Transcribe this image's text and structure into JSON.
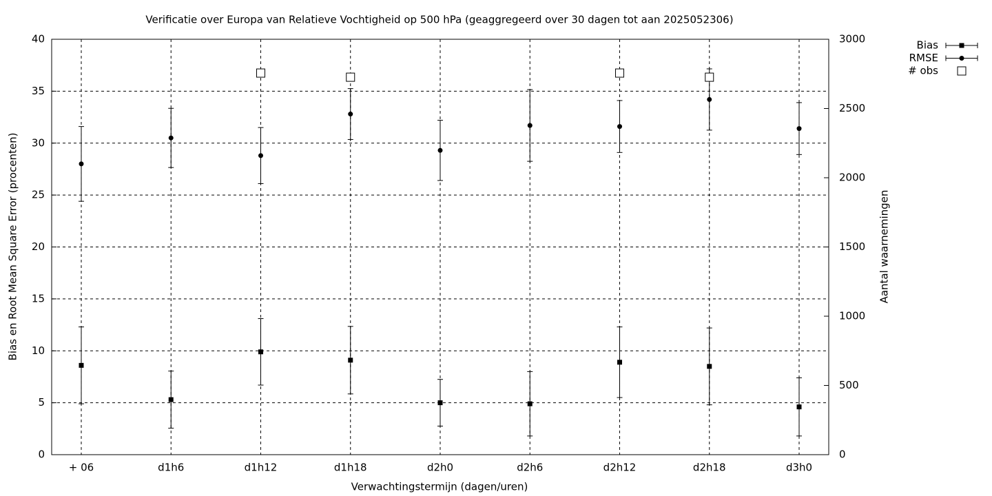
{
  "chart_data": {
    "type": "errorbar",
    "title": "Verificatie over Europa van Relatieve Vochtigheid op 500 hPa (geaggregeerd over 30 dagen tot aan 2025052306)",
    "x_label": "Verwachtingstermijn (dagen/uren)",
    "y_label": "Bias en Root Mean Square Error (procenten)",
    "y2_label": "Aantal waarnemingen",
    "categories": [
      "+ 06",
      "d1h6",
      "d1h12",
      "d1h18",
      "d2h0",
      "d2h6",
      "d2h12",
      "d2h18",
      "d3h0"
    ],
    "series": [
      {
        "name": "Bias",
        "color": "#000000",
        "marker": "square",
        "values": [
          8.6,
          5.3,
          9.9,
          9.1,
          5.0,
          4.9,
          8.9,
          8.5,
          4.6
        ],
        "errors": [
          3.7,
          2.75,
          3.2,
          3.25,
          2.25,
          3.1,
          3.4,
          3.7,
          2.8
        ]
      },
      {
        "name": "RMSE",
        "color": "#000000",
        "marker": "circle",
        "values": [
          28.0,
          30.5,
          28.8,
          32.8,
          29.3,
          31.7,
          31.6,
          34.2,
          31.4
        ],
        "errors": [
          3.6,
          2.85,
          2.7,
          2.45,
          2.9,
          3.45,
          2.5,
          2.95,
          2.5
        ]
      },
      {
        "name": "# obs",
        "color": "#000000",
        "marker": "open-square",
        "axis": "y2",
        "values": [
          null,
          null,
          2756,
          2726,
          null,
          null,
          2756,
          2726,
          null
        ]
      }
    ],
    "ylim": [
      0,
      40
    ],
    "yticks": [
      0,
      5,
      10,
      15,
      20,
      25,
      30,
      35,
      40
    ],
    "y2lim": [
      0,
      3000
    ],
    "y2ticks": [
      0,
      500,
      1000,
      1500,
      2000,
      2500,
      3000
    ],
    "grid": true,
    "legend": "outside-top-right"
  }
}
